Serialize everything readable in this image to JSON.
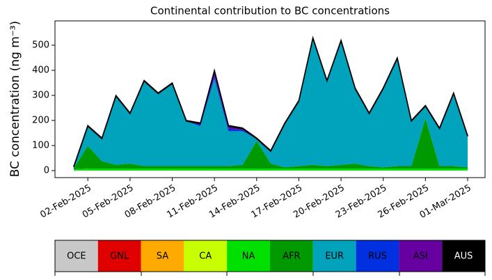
{
  "chart_data": {
    "type": "stacked_area",
    "title": "Continental contribution to BC concentrations",
    "y_label": "BC concentration (ng m⁻³)",
    "x": [
      "01-Feb-2025",
      "02-Feb-2025",
      "03-Feb-2025",
      "04-Feb-2025",
      "05-Feb-2025",
      "06-Feb-2025",
      "07-Feb-2025",
      "08-Feb-2025",
      "09-Feb-2025",
      "10-Feb-2025",
      "11-Feb-2025",
      "12-Feb-2025",
      "13-Feb-2025",
      "14-Feb-2025",
      "15-Feb-2025",
      "16-Feb-2025",
      "17-Feb-2025",
      "18-Feb-2025",
      "19-Feb-2025",
      "20-Feb-2025",
      "21-Feb-2025",
      "22-Feb-2025",
      "23-Feb-2025",
      "24-Feb-2025",
      "25-Feb-2025",
      "26-Feb-2025",
      "27-Feb-2025",
      "28-Feb-2025",
      "01-Mar-2025"
    ],
    "xticks": [
      "02-Feb-2025",
      "05-Feb-2025",
      "08-Feb-2025",
      "11-Feb-2025",
      "14-Feb-2025",
      "17-Feb-2025",
      "20-Feb-2025",
      "23-Feb-2025",
      "26-Feb-2025",
      "01-Mar-2025"
    ],
    "ylim": [
      -28,
      597
    ],
    "yticks": [
      0,
      100,
      200,
      300,
      400,
      500
    ],
    "series": [
      {
        "name": "OCE",
        "color": "#c8c8c8",
        "values": [
          0,
          0,
          0,
          0,
          0,
          0,
          0,
          0,
          0,
          0,
          0,
          0,
          0,
          0,
          0,
          0,
          0,
          0,
          0,
          0,
          0,
          0,
          0,
          0,
          0,
          0,
          0,
          0,
          0
        ]
      },
      {
        "name": "GNL",
        "color": "#e00000",
        "values": [
          0,
          0,
          0,
          0,
          0,
          0,
          0,
          0,
          0,
          0,
          0,
          0,
          0,
          0,
          0,
          0,
          0,
          0,
          0,
          0,
          0,
          0,
          0,
          0,
          0,
          0,
          0,
          0,
          0
        ]
      },
      {
        "name": "SA",
        "color": "#ffaa00",
        "values": [
          0,
          0,
          0,
          0,
          0,
          0,
          0,
          0,
          0,
          0,
          0,
          0,
          0,
          0,
          0,
          0,
          0,
          0,
          0,
          0,
          0,
          0,
          0,
          0,
          0,
          0,
          0,
          0,
          0
        ]
      },
      {
        "name": "CA",
        "color": "#c8ff00",
        "values": [
          0,
          0,
          0,
          0,
          0,
          0,
          0,
          0,
          0,
          0,
          0,
          0,
          0,
          0,
          0,
          0,
          0,
          0,
          0,
          0,
          0,
          0,
          0,
          0,
          0,
          0,
          0,
          0,
          0
        ]
      },
      {
        "name": "NA",
        "color": "#00e000",
        "values": [
          5,
          8,
          8,
          8,
          8,
          8,
          8,
          8,
          8,
          8,
          8,
          8,
          8,
          8,
          8,
          8,
          8,
          8,
          8,
          8,
          8,
          8,
          8,
          8,
          8,
          8,
          8,
          8,
          8
        ]
      },
      {
        "name": "AFR",
        "color": "#009900",
        "values": [
          5,
          90,
          30,
          15,
          20,
          10,
          10,
          10,
          10,
          10,
          10,
          10,
          15,
          110,
          20,
          5,
          10,
          15,
          10,
          15,
          20,
          10,
          5,
          10,
          10,
          200,
          10,
          10,
          5
        ]
      },
      {
        "name": "EUR",
        "color": "#00a3bb",
        "values": [
          4,
          79,
          89,
          274,
          199,
          339,
          289,
          329,
          179,
          159,
          349,
          139,
          134,
          9,
          49,
          174,
          259,
          504,
          339,
          494,
          299,
          209,
          314,
          429,
          179,
          49,
          149,
          289,
          124
        ]
      },
      {
        "name": "RUS",
        "color": "#0030e0",
        "values": [
          0,
          0,
          0,
          0,
          0,
          0,
          0,
          0,
          0,
          5,
          10,
          10,
          5,
          0,
          0,
          0,
          0,
          0,
          0,
          0,
          0,
          0,
          0,
          0,
          0,
          0,
          0,
          0,
          0
        ]
      },
      {
        "name": "ASI",
        "color": "#6600a0",
        "values": [
          0,
          0,
          0,
          0,
          0,
          0,
          0,
          0,
          0,
          5,
          20,
          10,
          5,
          0,
          0,
          0,
          0,
          0,
          0,
          0,
          0,
          0,
          0,
          0,
          0,
          0,
          0,
          0,
          0
        ]
      },
      {
        "name": "AUS",
        "color": "#000000",
        "values": [
          3,
          3,
          3,
          3,
          3,
          3,
          3,
          3,
          3,
          3,
          3,
          3,
          3,
          3,
          3,
          3,
          3,
          3,
          3,
          3,
          3,
          3,
          3,
          3,
          3,
          3,
          3,
          3,
          3
        ]
      }
    ]
  }
}
